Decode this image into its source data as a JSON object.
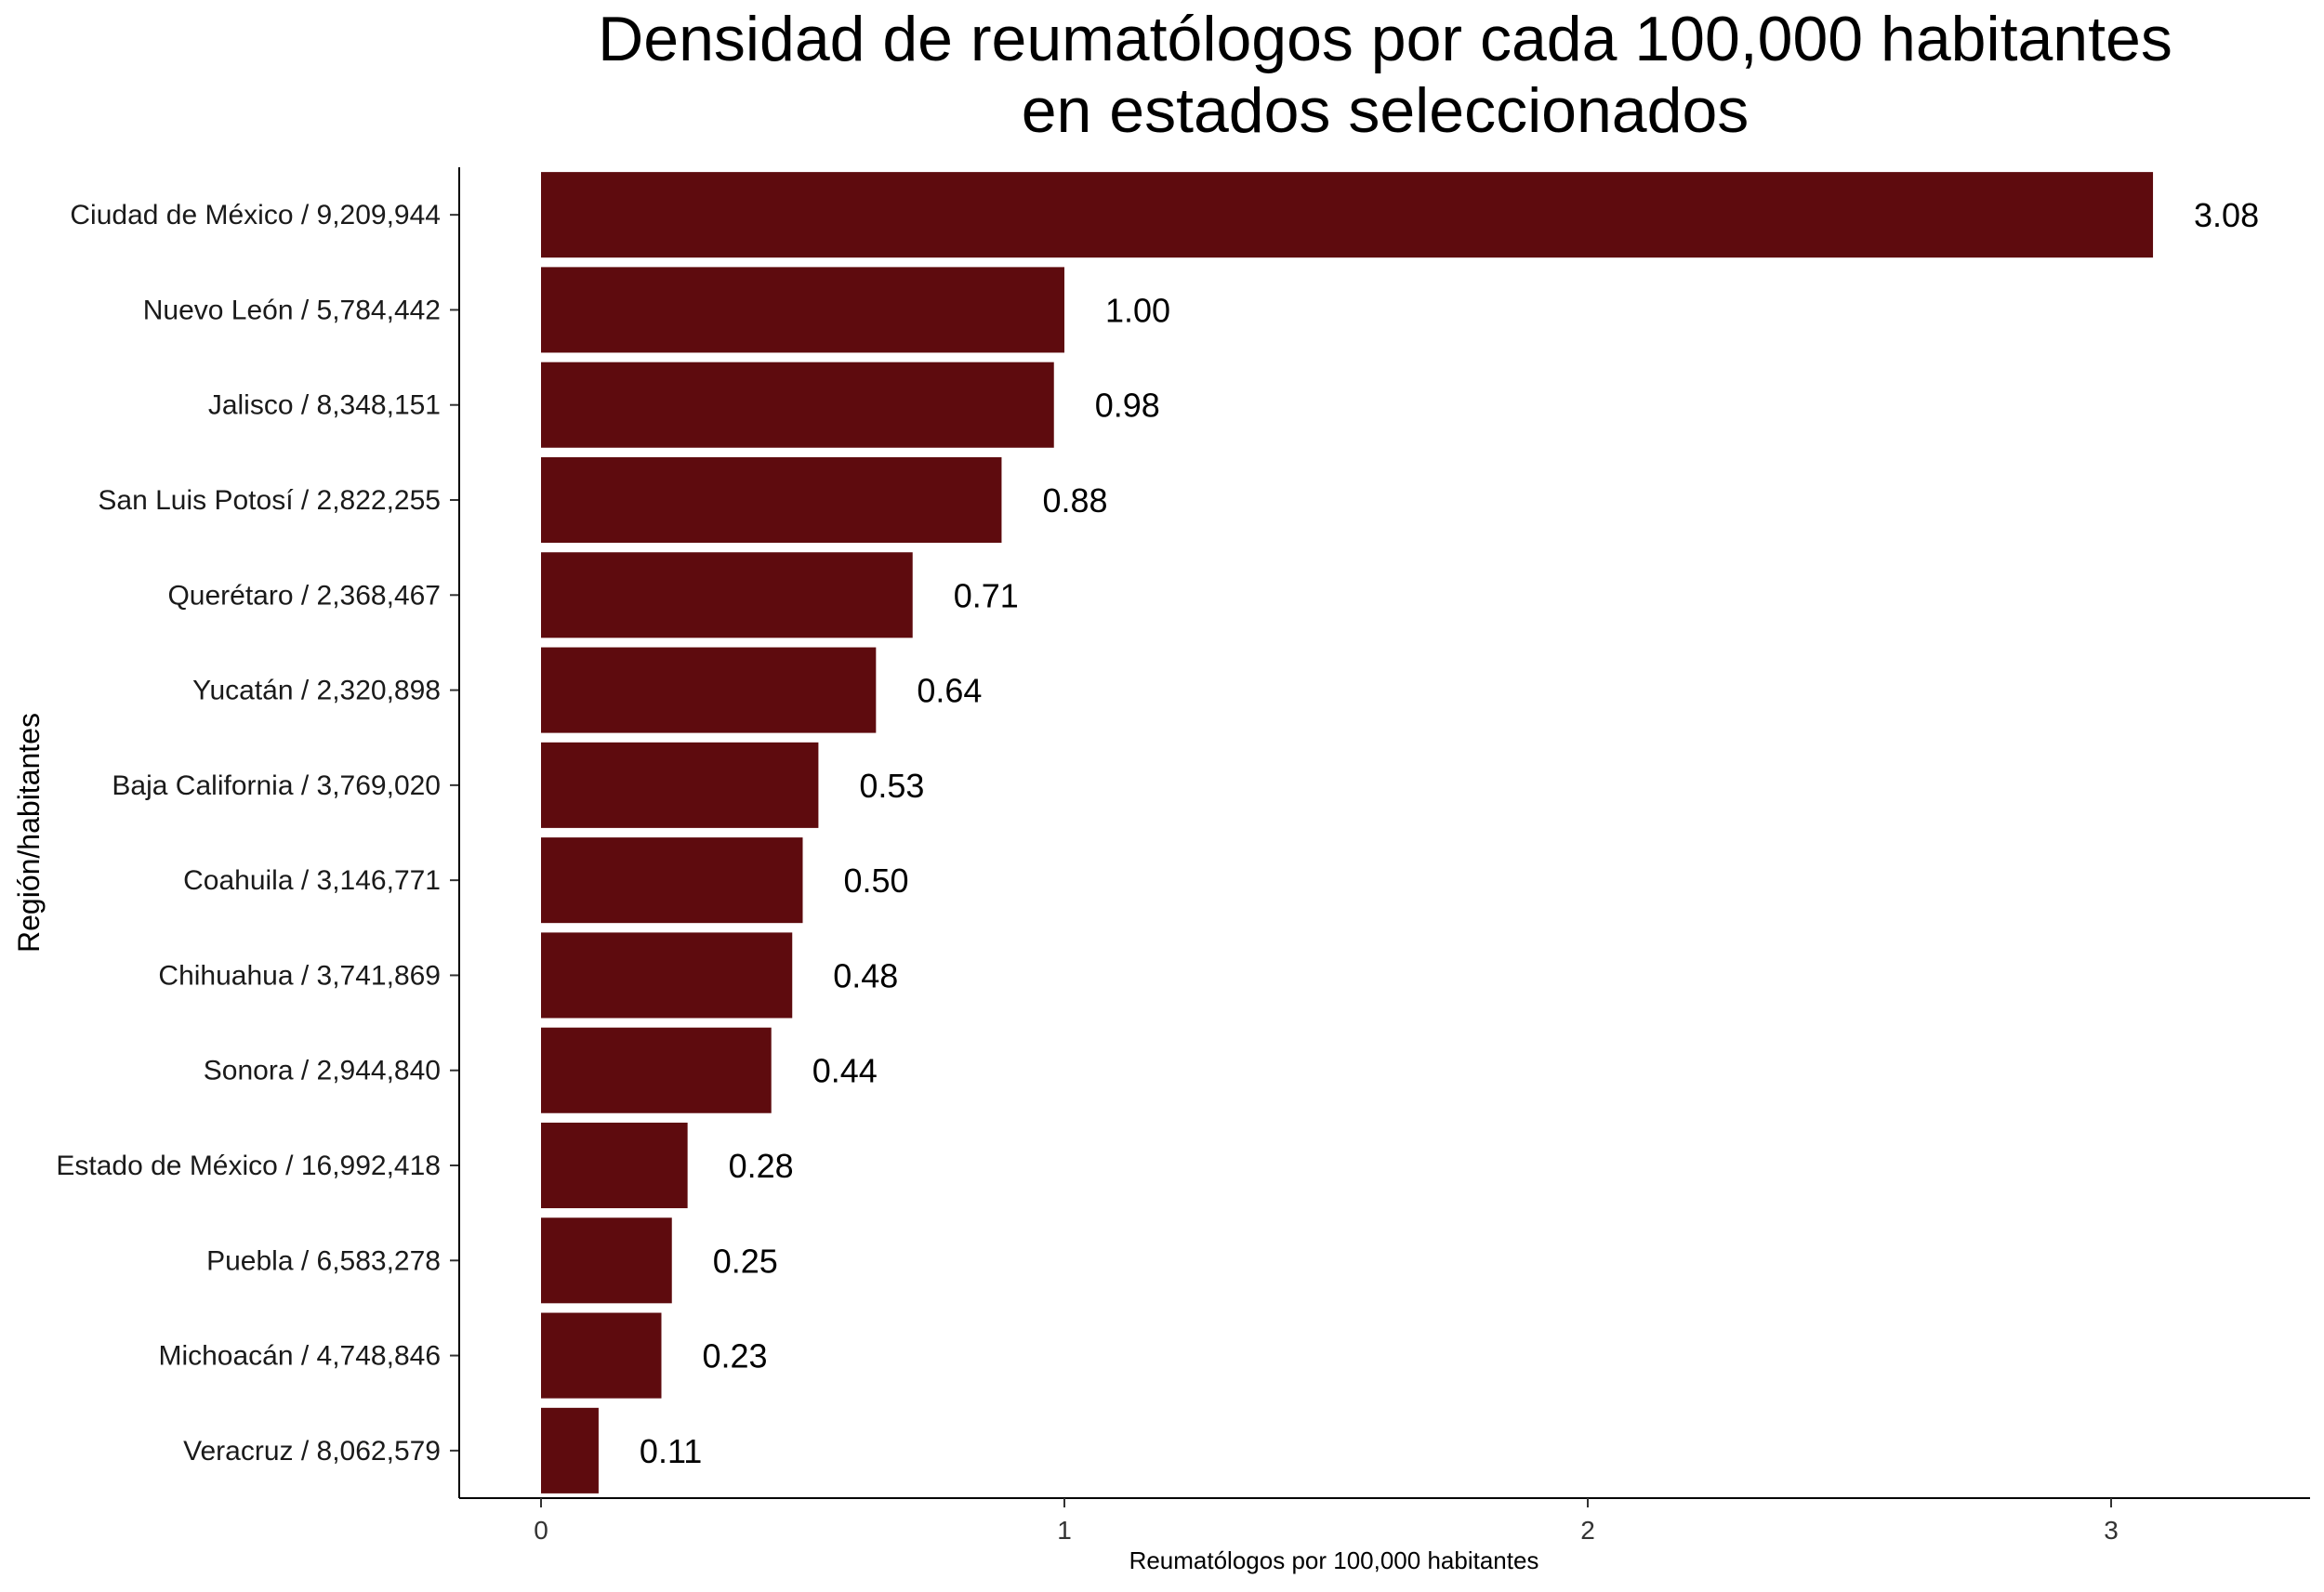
{
  "chart_data": {
    "type": "bar",
    "orientation": "horizontal",
    "title": [
      "Densidad de reumatólogos por cada 100,000 habitantes",
      "en estados seleccionados"
    ],
    "xlabel": "Reumatólogos por 100,000 habitantes",
    "ylabel": "Región/habitantes",
    "categories": [
      "Ciudad de México  / 9,209,944",
      "Nuevo León / 5,784,442",
      "Jalisco / 8,348,151",
      "San Luis Potosí / 2,822,255",
      "Querétaro / 2,368,467",
      "Yucatán / 2,320,898",
      "Baja California / 3,769,020",
      "Coahuila / 3,146,771",
      "Chihuahua / 3,741,869",
      "Sonora / 2,944,840",
      "Estado de México / 16,992,418",
      "Puebla / 6,583,278",
      "Michoacán /  4,748,846",
      "Veracruz / 8,062,579"
    ],
    "values": [
      3.08,
      1.0,
      0.98,
      0.88,
      0.71,
      0.64,
      0.53,
      0.5,
      0.48,
      0.44,
      0.28,
      0.25,
      0.23,
      0.11
    ],
    "value_labels": [
      "3.08",
      "1.00",
      "0.98",
      "0.88",
      "0.71",
      "0.64",
      "0.53",
      "0.50",
      "0.48",
      "0.44",
      "0.28",
      "0.25",
      "0.23",
      "0.11"
    ],
    "xticks": [
      0,
      1,
      2,
      3
    ],
    "xlim": [
      -0.15,
      3.4
    ],
    "grid": false,
    "legend": "none",
    "colors": {
      "bar": "#5e0b0e"
    }
  }
}
